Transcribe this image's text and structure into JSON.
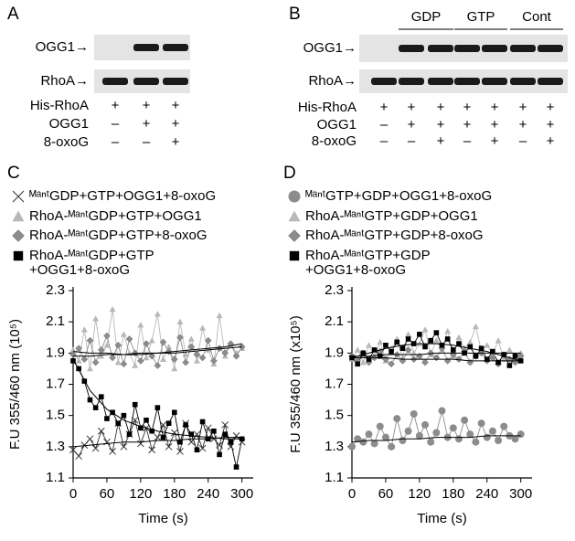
{
  "panels": [
    {
      "label": "A",
      "blots": [
        "OGG1→",
        "RhoA→"
      ],
      "rows": [
        {
          "label": "His-RhoA",
          "cells": [
            "+",
            "+",
            "+"
          ]
        },
        {
          "label": "OGG1",
          "cells": [
            "–",
            "+",
            "+"
          ]
        },
        {
          "label": "8-oxoG",
          "cells": [
            "–",
            "–",
            "+"
          ]
        }
      ]
    },
    {
      "label": "B",
      "groups": [
        "GDP",
        "GTP",
        "Cont"
      ],
      "blots": [
        "OGG1→",
        "RhoA→"
      ],
      "rows": [
        {
          "label": "His-RhoA",
          "cells": [
            "+",
            "+",
            "+",
            "+",
            "+",
            "+",
            "+"
          ]
        },
        {
          "label": "OGG1",
          "cells": [
            "–",
            "+",
            "+",
            "+",
            "+",
            "+",
            "+"
          ]
        },
        {
          "label": "8-oxoG",
          "cells": [
            "–",
            "–",
            "+",
            "–",
            "+",
            "–",
            "+"
          ]
        }
      ]
    }
  ],
  "chart_data": [
    {
      "type": "scatter",
      "label": "C",
      "xlabel": "Time (s)",
      "ylabel": "F.U 355/460 nm (10⁵)",
      "xlim": [
        0,
        320
      ],
      "ylim": [
        1.1,
        2.3
      ],
      "xticks": [
        0,
        60,
        120,
        180,
        240,
        300
      ],
      "yticks": [
        1.1,
        1.3,
        1.5,
        1.7,
        1.9,
        2.1,
        2.3
      ],
      "x": [
        0,
        10,
        20,
        30,
        40,
        50,
        60,
        70,
        80,
        90,
        100,
        110,
        120,
        130,
        140,
        150,
        160,
        170,
        180,
        190,
        200,
        210,
        220,
        230,
        240,
        250,
        260,
        270,
        280,
        290,
        300
      ],
      "series": [
        {
          "name": [
            "ᴹᵃⁿᵗGDP+GTP+OGG1+8-oxoG"
          ],
          "marker": "x",
          "color": "#333333",
          "values": [
            1.28,
            1.24,
            1.31,
            1.35,
            1.29,
            1.4,
            1.33,
            1.27,
            1.45,
            1.3,
            1.38,
            1.47,
            1.32,
            1.42,
            1.28,
            1.36,
            1.44,
            1.3,
            1.39,
            1.27,
            1.45,
            1.33,
            1.38,
            1.29,
            1.42,
            1.35,
            1.31,
            1.44,
            1.3,
            1.37,
            1.33
          ]
        },
        {
          "name": [
            "RhoA-ᴹᵃⁿᵗGDP+GTP+OGG1"
          ],
          "marker": "triangle",
          "color": "#b8b8b8",
          "values": [
            1.92,
            1.85,
            2.05,
            1.8,
            2.12,
            1.88,
            1.95,
            2.18,
            1.84,
            2.02,
            1.9,
            1.82,
            2.08,
            1.87,
            1.98,
            2.15,
            1.86,
            1.94,
            1.8,
            2.1,
            1.89,
            1.99,
            1.85,
            2.06,
            1.92,
            1.83,
            2.14,
            1.88,
            1.96,
            1.9,
            1.93
          ]
        },
        {
          "name": [
            "RhoA-ᴹᵃⁿᵗGDP+GTP+8-oxoG"
          ],
          "marker": "diamond",
          "color": "#8c8c8c",
          "values": [
            1.89,
            1.93,
            1.86,
            1.98,
            1.84,
            1.92,
            2.01,
            1.87,
            1.95,
            1.83,
            1.99,
            1.9,
            1.85,
            1.96,
            1.88,
            1.82,
            1.97,
            1.91,
            1.86,
            2.0,
            1.84,
            1.94,
            1.89,
            1.87,
            1.98,
            1.85,
            1.93,
            1.9,
            1.96,
            1.88,
            1.94
          ]
        },
        {
          "name": [
            "RhoA-ᴹᵃⁿᵗGDP+GTP",
            "+OGG1+8-oxoG"
          ],
          "marker": "square",
          "color": "#000000",
          "values": [
            1.85,
            1.8,
            1.72,
            1.6,
            1.55,
            1.62,
            1.48,
            1.52,
            1.45,
            1.5,
            1.38,
            1.57,
            1.42,
            1.47,
            1.4,
            1.55,
            1.36,
            1.45,
            1.52,
            1.33,
            1.44,
            1.38,
            1.28,
            1.46,
            1.35,
            1.4,
            1.25,
            1.38,
            1.33,
            1.17,
            1.35
          ]
        }
      ],
      "fit_x": [
        0,
        30,
        60,
        90,
        120,
        150,
        180,
        210,
        240,
        270,
        300
      ],
      "fits": [
        [
          1.3,
          1.31,
          1.32,
          1.33,
          1.33,
          1.34,
          1.34,
          1.35,
          1.35,
          1.36,
          1.36
        ],
        [
          1.88,
          1.88,
          1.89,
          1.89,
          1.9,
          1.9,
          1.91,
          1.92,
          1.93,
          1.94,
          1.96
        ],
        [
          1.91,
          1.9,
          1.9,
          1.89,
          1.89,
          1.9,
          1.9,
          1.91,
          1.92,
          1.93,
          1.94
        ],
        [
          1.86,
          1.66,
          1.54,
          1.47,
          1.43,
          1.4,
          1.38,
          1.37,
          1.36,
          1.35,
          1.35
        ]
      ]
    },
    {
      "type": "scatter",
      "label": "D",
      "xlabel": "Time (s)",
      "ylabel": "F.U 355/460 nm (x10⁵)",
      "xlim": [
        0,
        320
      ],
      "ylim": [
        1.1,
        2.3
      ],
      "xticks": [
        0,
        60,
        120,
        180,
        240,
        300
      ],
      "yticks": [
        1.1,
        1.3,
        1.5,
        1.7,
        1.9,
        2.1,
        2.3
      ],
      "x": [
        0,
        10,
        20,
        30,
        40,
        50,
        60,
        70,
        80,
        90,
        100,
        110,
        120,
        130,
        140,
        150,
        160,
        170,
        180,
        190,
        200,
        210,
        220,
        230,
        240,
        250,
        260,
        270,
        280,
        290,
        300
      ],
      "series": [
        {
          "name": [
            "ᴹᵃⁿᵗGTP+GDP+OGG1+8-oxoG"
          ],
          "marker": "circle",
          "color": "#8c8c8c",
          "values": [
            1.3,
            1.35,
            1.33,
            1.38,
            1.32,
            1.43,
            1.36,
            1.3,
            1.48,
            1.34,
            1.4,
            1.51,
            1.37,
            1.44,
            1.33,
            1.39,
            1.53,
            1.36,
            1.42,
            1.35,
            1.47,
            1.38,
            1.33,
            1.45,
            1.36,
            1.4,
            1.34,
            1.43,
            1.37,
            1.35,
            1.38
          ]
        },
        {
          "name": [
            "RhoA-ᴹᵃⁿᵗGTP+GDP+OGG1"
          ],
          "marker": "triangle",
          "color": "#b8b8b8",
          "values": [
            1.86,
            1.92,
            1.84,
            1.95,
            1.88,
            1.97,
            1.85,
            1.93,
            1.99,
            1.87,
            2.02,
            1.9,
            1.96,
            2.05,
            1.89,
            1.98,
            1.92,
            2.04,
            1.88,
            2.0,
            1.93,
            1.97,
            2.07,
            1.91,
            1.95,
            1.89,
            1.98,
            1.86,
            1.92,
            1.88,
            1.9
          ]
        },
        {
          "name": [
            "RhoA-ᴹᵃⁿᵗGTP+GDP+8-oxoG"
          ],
          "marker": "diamond",
          "color": "#8c8c8c",
          "values": [
            1.88,
            1.85,
            1.9,
            1.84,
            1.87,
            1.91,
            1.86,
            1.83,
            1.89,
            1.85,
            1.92,
            1.86,
            1.88,
            1.84,
            1.9,
            1.87,
            1.93,
            1.85,
            1.89,
            1.86,
            1.91,
            1.84,
            1.88,
            1.9,
            1.85,
            1.87,
            1.83,
            1.89,
            1.86,
            1.84,
            1.88
          ]
        },
        {
          "name": [
            "RhoA-ᴹᵃⁿᵗGTP+GDP",
            "+OGG1+8-oxoG"
          ],
          "marker": "square",
          "color": "#000000",
          "values": [
            1.87,
            1.83,
            1.9,
            1.86,
            1.92,
            1.88,
            1.95,
            1.91,
            1.97,
            1.93,
            1.99,
            1.96,
            2.02,
            1.94,
            1.98,
            2.03,
            1.95,
            1.99,
            1.92,
            1.96,
            1.9,
            1.94,
            1.88,
            1.93,
            1.86,
            1.91,
            1.84,
            1.89,
            1.82,
            1.88,
            1.85
          ]
        }
      ],
      "fit_x": [
        0,
        30,
        60,
        90,
        120,
        150,
        180,
        210,
        240,
        270,
        300
      ],
      "fits": [
        [
          1.33,
          1.34,
          1.34,
          1.35,
          1.35,
          1.36,
          1.36,
          1.36,
          1.37,
          1.37,
          1.37
        ],
        [
          1.88,
          1.88,
          1.89,
          1.89,
          1.89,
          1.9,
          1.9,
          1.9,
          1.9,
          1.9,
          1.9
        ],
        [
          1.87,
          1.87,
          1.87,
          1.86,
          1.86,
          1.86,
          1.86,
          1.85,
          1.85,
          1.85,
          1.85
        ],
        [
          1.87,
          1.9,
          1.93,
          1.95,
          1.96,
          1.96,
          1.95,
          1.93,
          1.91,
          1.88,
          1.85
        ]
      ]
    }
  ]
}
